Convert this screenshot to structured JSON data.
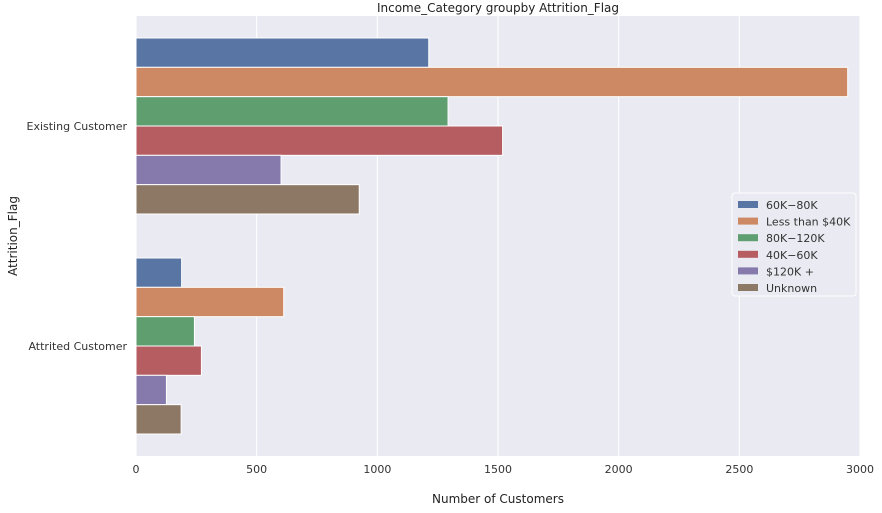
{
  "chart_data": {
    "type": "bar",
    "orientation": "horizontal",
    "title": "Income_Category groupby Attrition_Flag",
    "xlabel": "Number of Customers",
    "ylabel": "Attrition_Flag",
    "xlim": [
      0,
      3000
    ],
    "xticks": [
      "0",
      "500",
      "1000",
      "1500",
      "2000",
      "2500",
      "3000"
    ],
    "categories": [
      "Existing Customer",
      "Attrited Customer"
    ],
    "grid": true,
    "legend_position": "center-right",
    "series": [
      {
        "name": "$60K - $80K",
        "legend_label": "60K−80K",
        "color": "#5875a4",
        "values": [
          1213,
          189
        ]
      },
      {
        "name": "Less than $40K",
        "legend_label": "Less than $40K",
        "color": "#cc8963",
        "values": [
          2949,
          612
        ]
      },
      {
        "name": "$80K - $120K",
        "legend_label": "80K−120K",
        "color": "#5f9e6e",
        "values": [
          1293,
          242
        ]
      },
      {
        "name": "$40K - $60K",
        "legend_label": "40K−60K",
        "color": "#b55d60",
        "values": [
          1519,
          271
        ]
      },
      {
        "name": "$120K +",
        "legend_label": "$120K +",
        "color": "#857aab",
        "values": [
          601,
          126
        ]
      },
      {
        "name": "Unknown",
        "legend_label": "Unknown",
        "color": "#8d7866",
        "values": [
          925,
          187
        ]
      }
    ]
  }
}
